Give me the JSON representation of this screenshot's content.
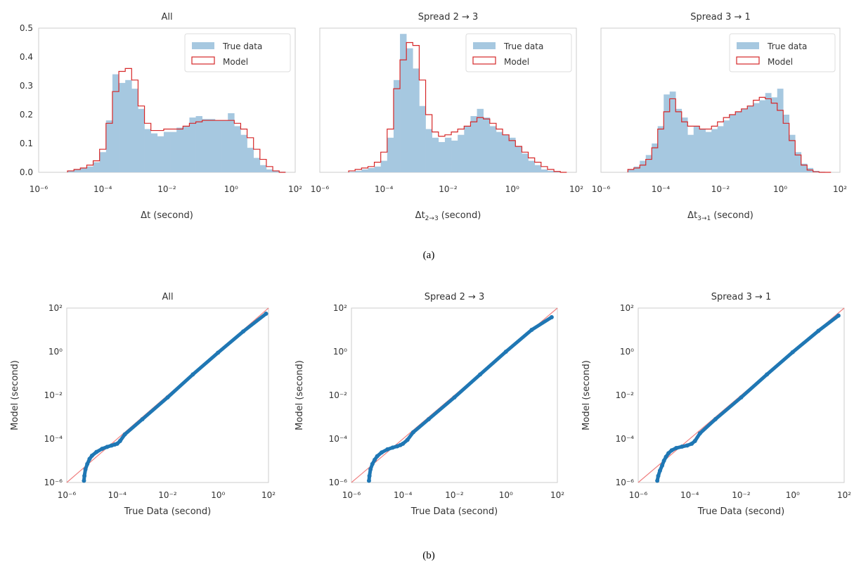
{
  "captions": {
    "a": "(a)",
    "b": "(b)"
  },
  "legend": {
    "true_data": "True data",
    "model": "Model"
  },
  "colors": {
    "true_data": "#a6c8e0",
    "model": "#d62728",
    "scatter": "#1f77b4",
    "identity": "#f08080"
  },
  "chart_data": [
    {
      "type": "bar",
      "subtype": "histogram",
      "title": "All",
      "xlabel_main": "Δt",
      "xlabel_sub": "",
      "xlabel_unit": " (second)",
      "xscale": "log",
      "xlim": [
        1e-06,
        100
      ],
      "ylim": [
        0,
        0.5
      ],
      "yticks": [
        "0.0",
        "0.1",
        "0.2",
        "0.3",
        "0.4",
        "0.5"
      ],
      "xticks": [
        "10⁻⁶",
        "10⁻⁴",
        "10⁻²",
        "10⁰",
        "10²"
      ],
      "legend_position": "top-right",
      "x_log10": [
        -5.0,
        -4.8,
        -4.6,
        -4.4,
        -4.2,
        -4.0,
        -3.8,
        -3.6,
        -3.4,
        -3.2,
        -3.0,
        -2.8,
        -2.6,
        -2.4,
        -2.2,
        -2.0,
        -1.8,
        -1.6,
        -1.4,
        -1.2,
        -1.0,
        -0.8,
        -0.6,
        -0.4,
        -0.2,
        0.0,
        0.2,
        0.4,
        0.6,
        0.8,
        1.0,
        1.2,
        1.4,
        1.6
      ],
      "series": [
        {
          "name": "True data",
          "values": [
            0.005,
            0.01,
            0.015,
            0.02,
            0.035,
            0.07,
            0.18,
            0.34,
            0.31,
            0.32,
            0.29,
            0.22,
            0.15,
            0.135,
            0.125,
            0.14,
            0.14,
            0.155,
            0.16,
            0.19,
            0.195,
            0.185,
            0.185,
            0.18,
            0.18,
            0.205,
            0.16,
            0.13,
            0.085,
            0.05,
            0.025,
            0.01,
            0.005,
            0.002
          ]
        },
        {
          "name": "Model",
          "values": [
            0.005,
            0.01,
            0.015,
            0.025,
            0.04,
            0.08,
            0.17,
            0.28,
            0.35,
            0.36,
            0.32,
            0.23,
            0.17,
            0.145,
            0.145,
            0.15,
            0.15,
            0.15,
            0.16,
            0.17,
            0.175,
            0.18,
            0.18,
            0.18,
            0.18,
            0.18,
            0.17,
            0.15,
            0.12,
            0.08,
            0.045,
            0.02,
            0.005,
            0.0
          ]
        }
      ]
    },
    {
      "type": "bar",
      "subtype": "histogram",
      "title": "Spread 2 → 3",
      "xlabel_main": "Δt",
      "xlabel_sub": "2→3",
      "xlabel_unit": " (second)",
      "xscale": "log",
      "xlim": [
        1e-06,
        100
      ],
      "ylim": [
        0,
        0.5
      ],
      "xticks": [
        "10⁻⁶",
        "10⁻⁴",
        "10⁻²",
        "10⁰",
        "10²"
      ],
      "legend_position": "top-right",
      "x_log10": [
        -5.0,
        -4.8,
        -4.6,
        -4.4,
        -4.2,
        -4.0,
        -3.8,
        -3.6,
        -3.4,
        -3.2,
        -3.0,
        -2.8,
        -2.6,
        -2.4,
        -2.2,
        -2.0,
        -1.8,
        -1.6,
        -1.4,
        -1.2,
        -1.0,
        -0.8,
        -0.6,
        -0.4,
        -0.2,
        0.0,
        0.2,
        0.4,
        0.6,
        0.8,
        1.0,
        1.2,
        1.4,
        1.6
      ],
      "series": [
        {
          "name": "True data",
          "values": [
            0.002,
            0.005,
            0.01,
            0.015,
            0.02,
            0.04,
            0.12,
            0.32,
            0.48,
            0.43,
            0.36,
            0.23,
            0.15,
            0.12,
            0.105,
            0.12,
            0.11,
            0.13,
            0.16,
            0.195,
            0.22,
            0.19,
            0.16,
            0.14,
            0.13,
            0.12,
            0.09,
            0.065,
            0.04,
            0.025,
            0.01,
            0.005,
            0.002,
            0.0
          ]
        },
        {
          "name": "Model",
          "values": [
            0.005,
            0.01,
            0.015,
            0.02,
            0.035,
            0.07,
            0.15,
            0.29,
            0.39,
            0.45,
            0.44,
            0.32,
            0.2,
            0.14,
            0.125,
            0.13,
            0.14,
            0.15,
            0.16,
            0.175,
            0.19,
            0.185,
            0.17,
            0.15,
            0.13,
            0.11,
            0.09,
            0.07,
            0.05,
            0.035,
            0.02,
            0.01,
            0.003,
            0.0
          ]
        }
      ]
    },
    {
      "type": "bar",
      "subtype": "histogram",
      "title": "Spread 3 → 1",
      "xlabel_main": "Δt",
      "xlabel_sub": "3→1",
      "xlabel_unit": " (second)",
      "xscale": "log",
      "xlim": [
        1e-06,
        100
      ],
      "ylim": [
        0,
        0.5
      ],
      "xticks": [
        "10⁻⁶",
        "10⁻⁴",
        "10⁻²",
        "10⁰",
        "10²"
      ],
      "legend_position": "top-right",
      "x_log10": [
        -5.0,
        -4.8,
        -4.6,
        -4.4,
        -4.2,
        -4.0,
        -3.8,
        -3.6,
        -3.4,
        -3.2,
        -3.0,
        -2.8,
        -2.6,
        -2.4,
        -2.2,
        -2.0,
        -1.8,
        -1.6,
        -1.4,
        -1.2,
        -1.0,
        -0.8,
        -0.6,
        -0.4,
        -0.2,
        0.0,
        0.2,
        0.4,
        0.6,
        0.8,
        1.0,
        1.2,
        1.4,
        1.6
      ],
      "series": [
        {
          "name": "True data",
          "values": [
            0.01,
            0.02,
            0.04,
            0.06,
            0.1,
            0.16,
            0.27,
            0.28,
            0.22,
            0.19,
            0.13,
            0.16,
            0.15,
            0.14,
            0.15,
            0.16,
            0.18,
            0.2,
            0.21,
            0.22,
            0.23,
            0.24,
            0.25,
            0.275,
            0.26,
            0.29,
            0.2,
            0.13,
            0.07,
            0.03,
            0.015,
            0.005,
            0.002,
            0.0
          ]
        },
        {
          "name": "Model",
          "values": [
            0.01,
            0.015,
            0.025,
            0.045,
            0.085,
            0.15,
            0.21,
            0.255,
            0.21,
            0.175,
            0.16,
            0.16,
            0.15,
            0.15,
            0.16,
            0.175,
            0.19,
            0.2,
            0.21,
            0.22,
            0.23,
            0.25,
            0.26,
            0.255,
            0.24,
            0.215,
            0.17,
            0.11,
            0.06,
            0.025,
            0.008,
            0.002,
            0.0,
            0.0
          ]
        }
      ]
    },
    {
      "type": "scatter",
      "subtype": "qq-plot",
      "title": "All",
      "xlabel": "True Data (second)",
      "ylabel": "Model (second)",
      "xscale": "log",
      "yscale": "log",
      "xlim": [
        1e-06,
        100
      ],
      "ylim": [
        1e-06,
        100
      ],
      "xticks": [
        "10⁻⁶",
        "10⁻⁴",
        "10⁻²",
        "10⁰",
        "10²"
      ],
      "yticks": [
        "10⁻⁶",
        "10⁻⁴",
        "10⁻²",
        "10⁰",
        "10²"
      ],
      "x": [
        4.8e-06,
        5e-06,
        5.5e-06,
        6.5e-06,
        8e-06,
        1e-05,
        1.5e-05,
        2.5e-05,
        4e-05,
        6e-05,
        8e-05,
        0.0001,
        0.00013,
        0.0002,
        0.001,
        0.01,
        0.1,
        1,
        10,
        80
      ],
      "y": [
        1.2e-06,
        2e-06,
        4e-06,
        7e-06,
        1.2e-05,
        1.7e-05,
        2.5e-05,
        3.5e-05,
        4.3e-05,
        5e-05,
        5.5e-05,
        6e-05,
        8e-05,
        0.00016,
        0.0008,
        0.008,
        0.09,
        0.9,
        8.5,
        55
      ]
    },
    {
      "type": "scatter",
      "subtype": "qq-plot",
      "title": "Spread 2 → 3",
      "xlabel": "True Data (second)",
      "ylabel": "Model (second)",
      "xscale": "log",
      "yscale": "log",
      "xlim": [
        1e-06,
        100
      ],
      "ylim": [
        1e-06,
        100
      ],
      "xticks": [
        "10⁻⁶",
        "10⁻⁴",
        "10⁻²",
        "10⁰",
        "10²"
      ],
      "yticks": [
        "10⁻⁶",
        "10⁻⁴",
        "10⁻²",
        "10⁰",
        "10²"
      ],
      "x": [
        4.8e-06,
        5e-06,
        5.5e-06,
        6.5e-06,
        8e-06,
        1e-05,
        1.5e-05,
        2.5e-05,
        4e-05,
        6e-05,
        8e-05,
        0.0001,
        0.00015,
        0.00025,
        0.001,
        0.01,
        0.1,
        1,
        10,
        60
      ],
      "y": [
        1.2e-06,
        2e-06,
        4e-06,
        7e-06,
        1.1e-05,
        1.6e-05,
        2.4e-05,
        3.3e-05,
        4e-05,
        4.6e-05,
        5.2e-05,
        6e-05,
        9e-05,
        0.0002,
        0.0008,
        0.008,
        0.09,
        1,
        10,
        38
      ]
    },
    {
      "type": "scatter",
      "subtype": "qq-plot",
      "title": "Spread 3 → 1",
      "xlabel": "True Data (second)",
      "ylabel": "Model (second)",
      "xscale": "log",
      "yscale": "log",
      "xlim": [
        1e-06,
        100
      ],
      "ylim": [
        1e-06,
        100
      ],
      "xticks": [
        "10⁻⁶",
        "10⁻⁴",
        "10⁻²",
        "10⁰",
        "10²"
      ],
      "yticks": [
        "10⁻⁶",
        "10⁻⁴",
        "10⁻²",
        "10⁰",
        "10²"
      ],
      "x": [
        5.5e-06,
        6e-06,
        7e-06,
        8.5e-06,
        1e-05,
        1.2e-05,
        1.5e-05,
        2e-05,
        3e-05,
        5e-05,
        8e-05,
        0.00012,
        0.00016,
        0.00025,
        0.001,
        0.01,
        0.1,
        1,
        10,
        60
      ],
      "y": [
        1.2e-06,
        2e-06,
        3.5e-06,
        6e-06,
        1e-05,
        1.5e-05,
        2.2e-05,
        3e-05,
        3.8e-05,
        4.4e-05,
        5e-05,
        6e-05,
        8e-05,
        0.00018,
        0.0008,
        0.008,
        0.09,
        0.95,
        9,
        45
      ]
    }
  ]
}
